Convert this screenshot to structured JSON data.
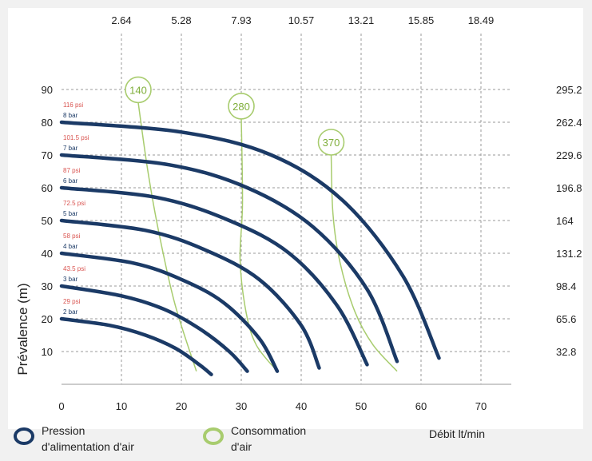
{
  "chart_data": {
    "type": "line",
    "ylabel": "Prévalence (m)",
    "xlabel": "Débit lt/min",
    "x_ticks": [
      0,
      10,
      20,
      30,
      40,
      50,
      60,
      70
    ],
    "y_ticks": [
      10,
      20,
      30,
      40,
      50,
      60,
      70,
      80,
      90
    ],
    "xlim": [
      0,
      75
    ],
    "ylim": [
      0,
      95
    ],
    "top_axis_ticks": [
      "2.64",
      "5.28",
      "7.93",
      "10.57",
      "13.21",
      "15.85",
      "18.49"
    ],
    "right_axis_ticks": [
      "32.8",
      "65.6",
      "98.4",
      "131.2",
      "164",
      "196.8",
      "229.6",
      "262.4",
      "295.2"
    ],
    "grid": true,
    "colors": {
      "pressure": "#1b3a66",
      "air": "#a8cc6e",
      "psi_label": "#d9534f",
      "bar_label": "#1b3a66"
    },
    "pressure_series": [
      {
        "bar": "2 bar",
        "psi": "29 psi",
        "x": [
          0,
          8,
          14,
          19,
          23,
          25
        ],
        "y": [
          20,
          18,
          15,
          11,
          6,
          3
        ]
      },
      {
        "bar": "3 bar",
        "psi": "43.5 psi",
        "x": [
          0,
          10,
          17,
          23,
          28,
          31
        ],
        "y": [
          30,
          27,
          23,
          17,
          10,
          4
        ]
      },
      {
        "bar": "4 bar",
        "psi": "58 psi",
        "x": [
          0,
          12,
          20,
          27,
          33,
          36
        ],
        "y": [
          40,
          37,
          32,
          25,
          14,
          4
        ]
      },
      {
        "bar": "5 bar",
        "psi": "72.5 psi",
        "x": [
          0,
          14,
          24,
          33,
          40,
          43
        ],
        "y": [
          50,
          47,
          41,
          32,
          18,
          5
        ]
      },
      {
        "bar": "6 bar",
        "psi": "87 psi",
        "x": [
          0,
          16,
          28,
          38,
          46,
          51
        ],
        "y": [
          60,
          57,
          50,
          40,
          24,
          6
        ]
      },
      {
        "bar": "7 bar",
        "psi": "101.5 psi",
        "x": [
          0,
          18,
          31,
          42,
          51,
          56
        ],
        "y": [
          70,
          67,
          60,
          48,
          29,
          7
        ]
      },
      {
        "bar": "8 bar",
        "psi": "116 psi",
        "x": [
          0,
          20,
          35,
          47,
          57,
          63
        ],
        "y": [
          80,
          77,
          70,
          56,
          33,
          8
        ]
      }
    ],
    "air_series": [
      {
        "name": "140",
        "x": [
          12.8,
          14.5,
          16.5,
          19,
          22.5
        ],
        "y": [
          86,
          64,
          44,
          24,
          4
        ]
      },
      {
        "name": "280",
        "x": [
          30,
          30.2,
          29.8,
          30.8,
          32.5,
          36
        ],
        "y": [
          81,
          55,
          38,
          22,
          12,
          4
        ]
      },
      {
        "name": "370",
        "x": [
          45,
          45.3,
          46.5,
          49,
          52,
          56
        ],
        "y": [
          70,
          52,
          37,
          22,
          12,
          4
        ]
      }
    ],
    "legend": [
      {
        "label_line1": "Pression",
        "label_line2": "d'alimentation d'air",
        "color": "#1b3a66"
      },
      {
        "label_line1": "Consommation",
        "label_line2": "d'air",
        "color": "#a8cc6e"
      }
    ]
  }
}
